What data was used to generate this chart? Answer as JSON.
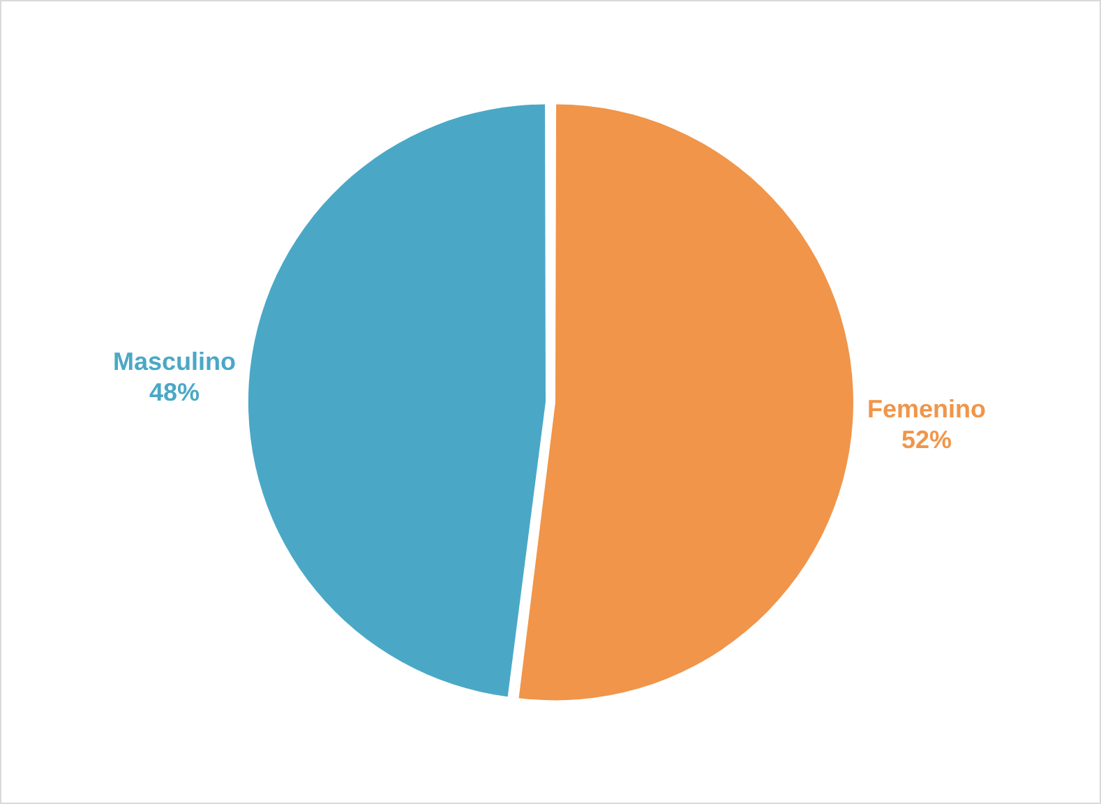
{
  "chart_data": {
    "type": "pie",
    "categories": [
      "Femenino",
      "Masculino"
    ],
    "values": [
      52,
      48
    ],
    "colors": [
      "#f0954a",
      "#4aa8c6"
    ],
    "value_labels": [
      "52%",
      "48%"
    ],
    "legend": false
  }
}
